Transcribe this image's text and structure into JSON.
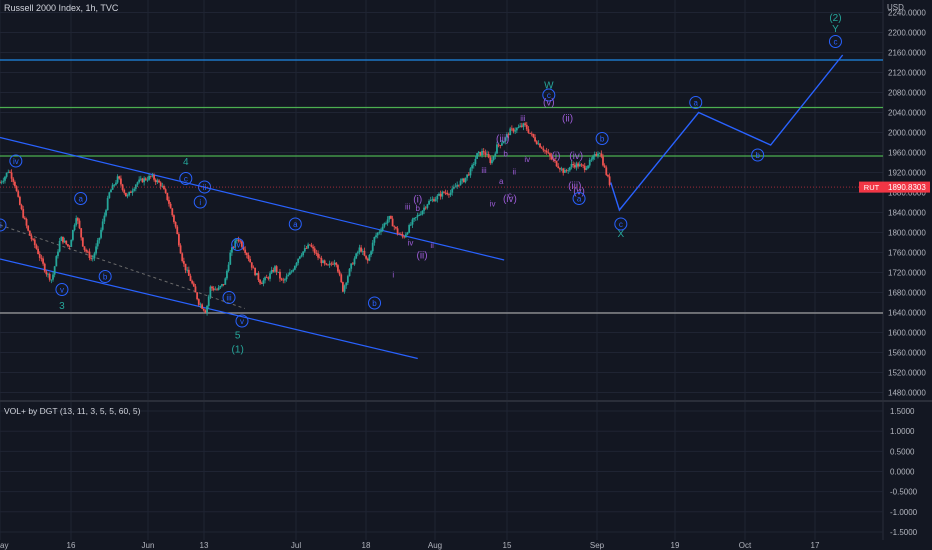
{
  "header": {
    "title": "Russell 2000 Index, 1h, TVC",
    "currency": "USD"
  },
  "oscillator": {
    "title": "VOL+ by DGT (13, 11, 3, 5, 5, 60, 5)"
  },
  "price_tag": {
    "symbol": "RUT",
    "value": "1890.8303",
    "color": "#f23645"
  },
  "colors": {
    "background": "#131722",
    "grid": "#1f2433",
    "up": "#26a69a",
    "down": "#ef5350",
    "channel": "#2962ff",
    "level": "#4caf50",
    "wave_blue": "#2962ff",
    "wave_purple": "#9c5cd6",
    "wave_teal": "#26a69a",
    "dashed": "#6b6b6b"
  },
  "chart_data": [
    {
      "type": "candlestick",
      "symbol": "RUT",
      "interval": "1h",
      "x_ticks": [
        "ay",
        "16",
        "Jun",
        "13",
        "Jul",
        "18",
        "Aug",
        "15",
        "Sep",
        "19",
        "Oct",
        "17"
      ],
      "y_ticks": [
        "2240.0000",
        "2200.0000",
        "2160.0000",
        "2120.0000",
        "2080.0000",
        "2040.0000",
        "2000.0000",
        "1960.0000",
        "1920.0000",
        "1880.0000",
        "1840.0000",
        "1800.0000",
        "1760.0000",
        "1720.0000",
        "1680.0000",
        "1640.0000",
        "1600.0000",
        "1560.0000",
        "1520.0000",
        "1480.0000"
      ],
      "ylim": [
        1465,
        2265
      ],
      "last_price": 1890.8303,
      "price_path": [
        [
          0,
          1900
        ],
        [
          0.3,
          1910
        ],
        [
          0.6,
          1925
        ],
        [
          1,
          1900
        ],
        [
          1.3,
          1862
        ],
        [
          2,
          1798
        ],
        [
          2.5,
          1770
        ],
        [
          3.2,
          1720
        ],
        [
          3.6,
          1705
        ],
        [
          4.2,
          1790
        ],
        [
          4.8,
          1770
        ],
        [
          5.3,
          1835
        ],
        [
          5.8,
          1770
        ],
        [
          6.4,
          1745
        ],
        [
          6.9,
          1790
        ],
        [
          7.6,
          1880
        ],
        [
          8.2,
          1910
        ],
        [
          8.8,
          1870
        ],
        [
          9.5,
          1900
        ],
        [
          10.5,
          1912
        ],
        [
          11.2,
          1895
        ],
        [
          11.7,
          1862
        ],
        [
          12.2,
          1810
        ],
        [
          12.7,
          1740
        ],
        [
          13.3,
          1700
        ],
        [
          13.8,
          1660
        ],
        [
          14.3,
          1642
        ],
        [
          14.6,
          1690
        ],
        [
          15.1,
          1685
        ],
        [
          15.6,
          1700
        ],
        [
          16,
          1760
        ],
        [
          16.5,
          1790
        ],
        [
          17.1,
          1760
        ],
        [
          17.6,
          1725
        ],
        [
          18.1,
          1700
        ],
        [
          18.6,
          1710
        ],
        [
          19.1,
          1730
        ],
        [
          19.6,
          1700
        ],
        [
          20.2,
          1720
        ],
        [
          20.8,
          1755
        ],
        [
          21.5,
          1775
        ],
        [
          22.1,
          1750
        ],
        [
          22.7,
          1730
        ],
        [
          23.3,
          1745
        ],
        [
          23.8,
          1685
        ],
        [
          24.4,
          1735
        ],
        [
          25,
          1770
        ],
        [
          25.5,
          1740
        ],
        [
          26,
          1790
        ],
        [
          26.5,
          1810
        ],
        [
          27,
          1830
        ],
        [
          27.6,
          1800
        ],
        [
          28,
          1790
        ],
        [
          28.6,
          1820
        ],
        [
          29.2,
          1840
        ],
        [
          29.7,
          1860
        ],
        [
          30.3,
          1870
        ],
        [
          30.8,
          1880
        ],
        [
          31.3,
          1880
        ],
        [
          31.8,
          1898
        ],
        [
          32.2,
          1905
        ],
        [
          32.7,
          1925
        ],
        [
          33.1,
          1955
        ],
        [
          33.6,
          1962
        ],
        [
          34.1,
          1940
        ],
        [
          34.5,
          1972
        ],
        [
          35,
          1985
        ],
        [
          35.4,
          2003
        ],
        [
          35.9,
          2008
        ],
        [
          36.4,
          2015
        ],
        [
          36.8,
          1998
        ],
        [
          37.3,
          1980
        ],
        [
          37.8,
          1965
        ],
        [
          38.2,
          1950
        ],
        [
          38.7,
          1935
        ],
        [
          39.2,
          1920
        ],
        [
          39.7,
          1935
        ],
        [
          40.1,
          1935
        ],
        [
          40.6,
          1930
        ],
        [
          41.1,
          1945
        ],
        [
          41.6,
          1965
        ],
        [
          42,
          1925
        ],
        [
          42.4,
          1892
        ]
      ],
      "projection": [
        {
          "x": "42.4",
          "y": 1900
        },
        {
          "x": "43",
          "y": 1845
        },
        {
          "x": "48.5",
          "y": 2040
        },
        {
          "x": "53.5",
          "y": 1975
        },
        {
          "x": "58.5",
          "y": 2155
        }
      ],
      "horizontal_levels": [
        {
          "y": 2145,
          "color": "#1e88e5"
        },
        {
          "y": 2050,
          "color": "#4caf50"
        },
        {
          "y": 1953,
          "color": "#4caf50"
        },
        {
          "y": 1639,
          "color": "#9e9e9e"
        }
      ],
      "channel_lines": [
        {
          "x1": 0,
          "y1": 1990,
          "x2": 35,
          "y2": 1745
        },
        {
          "x1": 0,
          "y1": 1747,
          "x2": 29,
          "y2": 1548
        }
      ],
      "dashed_line": {
        "x1": 0,
        "y1": 1815,
        "x2": 17,
        "y2": 1648
      },
      "wave_labels": [
        {
          "text": "iv",
          "x": 1.1,
          "y": 1943,
          "style": "circle",
          "color": "#2962ff"
        },
        {
          "text": "ii",
          "x": 0.0,
          "y": 1815,
          "style": "circle",
          "color": "#2962ff"
        },
        {
          "text": "a",
          "x": 5.6,
          "y": 1868,
          "style": "circle",
          "color": "#2962ff"
        },
        {
          "text": "b",
          "x": 7.3,
          "y": 1712,
          "style": "circle",
          "color": "#2962ff"
        },
        {
          "text": "v",
          "x": 4.3,
          "y": 1686,
          "style": "circle",
          "color": "#2962ff"
        },
        {
          "text": "3",
          "x": 4.3,
          "y": 1653,
          "style": "plain",
          "color": "#26a69a"
        },
        {
          "text": "4",
          "x": 12.9,
          "y": 1941,
          "style": "plain",
          "color": "#26a69a"
        },
        {
          "text": "c",
          "x": 12.9,
          "y": 1908,
          "style": "circle",
          "color": "#2962ff"
        },
        {
          "text": "ii",
          "x": 14.2,
          "y": 1891,
          "style": "circle",
          "color": "#2962ff"
        },
        {
          "text": "i",
          "x": 13.9,
          "y": 1861,
          "style": "circle",
          "color": "#2962ff"
        },
        {
          "text": "iv",
          "x": 16.5,
          "y": 1776,
          "style": "circle",
          "color": "#2962ff"
        },
        {
          "text": "iii",
          "x": 15.9,
          "y": 1670,
          "style": "circle",
          "color": "#2962ff"
        },
        {
          "text": "v",
          "x": 16.8,
          "y": 1623,
          "style": "circle",
          "color": "#2962ff"
        },
        {
          "text": "5",
          "x": 16.5,
          "y": 1594,
          "style": "plain",
          "color": "#26a69a"
        },
        {
          "text": "(1)",
          "x": 16.5,
          "y": 1566,
          "style": "plain",
          "color": "#26a69a"
        },
        {
          "text": "a",
          "x": 20.5,
          "y": 1817,
          "style": "circle",
          "color": "#2962ff"
        },
        {
          "text": "b",
          "x": 26.0,
          "y": 1659,
          "style": "circle",
          "color": "#2962ff"
        },
        {
          "text": "i",
          "x": 27.3,
          "y": 1716,
          "style": "plain",
          "color": "#9c5cd6"
        },
        {
          "text": "iii",
          "x": 28.3,
          "y": 1852,
          "style": "plain",
          "color": "#9c5cd6"
        },
        {
          "text": "(i)",
          "x": 29.0,
          "y": 1866,
          "style": "plain",
          "color": "#9c5cd6"
        },
        {
          "text": "b",
          "x": 29.0,
          "y": 1849,
          "style": "plain",
          "color": "#9c5cd6"
        },
        {
          "text": "iv",
          "x": 28.5,
          "y": 1780,
          "style": "plain",
          "color": "#9c5cd6"
        },
        {
          "text": "ii",
          "x": 30.0,
          "y": 1775,
          "style": "plain",
          "color": "#9c5cd6"
        },
        {
          "text": "(ii)",
          "x": 29.3,
          "y": 1754,
          "style": "plain",
          "color": "#9c5cd6"
        },
        {
          "text": "iii",
          "x": 33.6,
          "y": 1925,
          "style": "plain",
          "color": "#9c5cd6"
        },
        {
          "text": "iv",
          "x": 34.2,
          "y": 1858,
          "style": "plain",
          "color": "#9c5cd6"
        },
        {
          "text": "(iii)",
          "x": 34.9,
          "y": 1987,
          "style": "plain",
          "color": "#9c5cd6"
        },
        {
          "text": "b",
          "x": 35.1,
          "y": 1958,
          "style": "plain",
          "color": "#9c5cd6"
        },
        {
          "text": "a",
          "x": 34.8,
          "y": 1903,
          "style": "plain",
          "color": "#9c5cd6"
        },
        {
          "text": "ii",
          "x": 35.7,
          "y": 1922,
          "style": "plain",
          "color": "#9c5cd6"
        },
        {
          "text": "c",
          "x": 35.4,
          "y": 1875,
          "style": "plain",
          "color": "#9c5cd6"
        },
        {
          "text": "(iv)",
          "x": 35.4,
          "y": 1867,
          "style": "plain",
          "color": "#9c5cd6"
        },
        {
          "text": "iii",
          "x": 36.3,
          "y": 2029,
          "style": "plain",
          "color": "#9c5cd6"
        },
        {
          "text": "iv",
          "x": 36.6,
          "y": 1947,
          "style": "plain",
          "color": "#9c5cd6"
        },
        {
          "text": "W",
          "x": 38.1,
          "y": 2094,
          "style": "plain",
          "color": "#26a69a"
        },
        {
          "text": "c",
          "x": 38.1,
          "y": 2075,
          "style": "circle",
          "color": "#2962ff"
        },
        {
          "text": "(v)",
          "x": 38.1,
          "y": 2060,
          "style": "plain",
          "color": "#9c5cd6"
        },
        {
          "text": "(ii)",
          "x": 39.4,
          "y": 2028,
          "style": "plain",
          "color": "#9c5cd6"
        },
        {
          "text": "(i)",
          "x": 38.6,
          "y": 1953,
          "style": "plain",
          "color": "#9c5cd6"
        },
        {
          "text": "(iv)",
          "x": 40.0,
          "y": 1953,
          "style": "plain",
          "color": "#9c5cd6"
        },
        {
          "text": "(iii)",
          "x": 39.9,
          "y": 1893,
          "style": "plain",
          "color": "#9c5cd6"
        },
        {
          "text": "(v)",
          "x": 40.2,
          "y": 1882,
          "style": "plain",
          "color": "#9c5cd6"
        },
        {
          "text": "a",
          "x": 40.2,
          "y": 1868,
          "style": "circle",
          "color": "#2962ff"
        },
        {
          "text": "b",
          "x": 41.8,
          "y": 1988,
          "style": "circle",
          "color": "#2962ff"
        },
        {
          "text": "c",
          "x": 43.1,
          "y": 1817,
          "style": "circle",
          "color": "#2962ff"
        },
        {
          "text": "X",
          "x": 43.1,
          "y": 1797,
          "style": "plain",
          "color": "#26a69a"
        },
        {
          "text": "a",
          "x": 48.3,
          "y": 2060,
          "style": "circle",
          "color": "#2962ff"
        },
        {
          "text": "b",
          "x": 52.6,
          "y": 1955,
          "style": "circle",
          "color": "#2962ff"
        },
        {
          "text": "c",
          "x": 58.0,
          "y": 2182,
          "style": "circle",
          "color": "#2962ff"
        },
        {
          "text": "Y",
          "x": 58.0,
          "y": 2207,
          "style": "plain",
          "color": "#26a69a"
        },
        {
          "text": "(2)",
          "x": 58.0,
          "y": 2229,
          "style": "plain",
          "color": "#26a69a"
        }
      ]
    },
    {
      "type": "histogram",
      "title": "VOL+ by DGT (13, 11, 3, 5, 5, 60, 5)",
      "y_ticks": [
        "1.5000",
        "1.0000",
        "0.5000",
        "0.0000",
        "-0.5000",
        "-1.0000",
        "-1.5000"
      ],
      "ylim": [
        -1.7,
        1.7
      ]
    }
  ]
}
